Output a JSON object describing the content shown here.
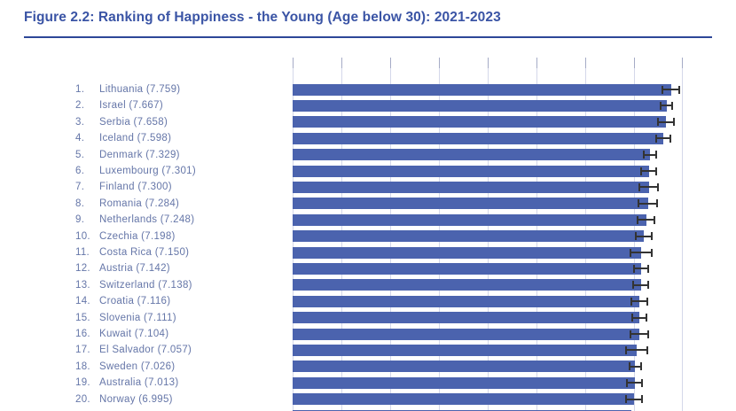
{
  "figure": {
    "title": "Figure 2.2: Ranking of Happiness - the Young (Age below 30): 2021-2023"
  },
  "colors": {
    "background": "#ffffff",
    "title": "#3a54a5",
    "divider": "#2d4798",
    "label": "#6576a8",
    "bar": "#4b63ae",
    "gridline": "#d4d8ea",
    "axis_tick": "#a5abc6",
    "error_bar": "#333333"
  },
  "chart_data": {
    "type": "bar",
    "orientation": "horizontal",
    "title": "Figure 2.2: Ranking of Happiness - the Young (Age below 30): 2021-2023",
    "xlabel": "",
    "ylabel": "",
    "xlim": [
      0,
      8
    ],
    "gridline_values": [
      0,
      1,
      2,
      3,
      4,
      5,
      6,
      7,
      8
    ],
    "grid": true,
    "legend": false,
    "error_bars": true,
    "categories": [
      "Lithuania",
      "Israel",
      "Serbia",
      "Iceland",
      "Denmark",
      "Luxembourg",
      "Finland",
      "Romania",
      "Netherlands",
      "Czechia",
      "Costa Rica",
      "Austria",
      "Switzerland",
      "Croatia",
      "Slovenia",
      "Kuwait",
      "El Salvador",
      "Sweden",
      "Australia",
      "Norway"
    ],
    "values": [
      7.759,
      7.667,
      7.658,
      7.598,
      7.329,
      7.301,
      7.3,
      7.284,
      7.248,
      7.198,
      7.15,
      7.142,
      7.138,
      7.116,
      7.111,
      7.104,
      7.057,
      7.026,
      7.013,
      6.995
    ],
    "rows": [
      {
        "rank": "1.",
        "country": "Lithuania",
        "score": "7.759",
        "value": 7.759,
        "ci": 0.19
      },
      {
        "rank": "2.",
        "country": "Israel",
        "score": "7.667",
        "value": 7.667,
        "ci": 0.14
      },
      {
        "rank": "3.",
        "country": "Serbia",
        "score": "7.658",
        "value": 7.658,
        "ci": 0.18
      },
      {
        "rank": "4.",
        "country": "Iceland",
        "score": "7.598",
        "value": 7.598,
        "ci": 0.16
      },
      {
        "rank": "5.",
        "country": "Denmark",
        "score": "7.329",
        "value": 7.329,
        "ci": 0.15
      },
      {
        "rank": "6.",
        "country": "Luxembourg",
        "score": "7.301",
        "value": 7.301,
        "ci": 0.18
      },
      {
        "rank": "7.",
        "country": "Finland",
        "score": "7.300",
        "value": 7.3,
        "ci": 0.21
      },
      {
        "rank": "8.",
        "country": "Romania",
        "score": "7.284",
        "value": 7.284,
        "ci": 0.21
      },
      {
        "rank": "9.",
        "country": "Netherlands",
        "score": "7.248",
        "value": 7.248,
        "ci": 0.19
      },
      {
        "rank": "10.",
        "country": "Czechia",
        "score": "7.198",
        "value": 7.198,
        "ci": 0.18
      },
      {
        "rank": "11.",
        "country": "Costa Rica",
        "score": "7.150",
        "value": 7.15,
        "ci": 0.24
      },
      {
        "rank": "12.",
        "country": "Austria",
        "score": "7.142",
        "value": 7.142,
        "ci": 0.16
      },
      {
        "rank": "13.",
        "country": "Switzerland",
        "score": "7.138",
        "value": 7.138,
        "ci": 0.18
      },
      {
        "rank": "14.",
        "country": "Croatia",
        "score": "7.116",
        "value": 7.116,
        "ci": 0.18
      },
      {
        "rank": "15.",
        "country": "Slovenia",
        "score": "7.111",
        "value": 7.111,
        "ci": 0.16
      },
      {
        "rank": "16.",
        "country": "Kuwait",
        "score": "7.104",
        "value": 7.104,
        "ci": 0.2
      },
      {
        "rank": "17.",
        "country": "El Salvador",
        "score": "7.057",
        "value": 7.057,
        "ci": 0.23
      },
      {
        "rank": "18.",
        "country": "Sweden",
        "score": "7.026",
        "value": 7.026,
        "ci": 0.14
      },
      {
        "rank": "19.",
        "country": "Australia",
        "score": "7.013",
        "value": 7.013,
        "ci": 0.17
      },
      {
        "rank": "20.",
        "country": "Norway",
        "score": "6.995",
        "value": 6.995,
        "ci": 0.18
      }
    ],
    "next_bar_partial_value": 6.95
  }
}
